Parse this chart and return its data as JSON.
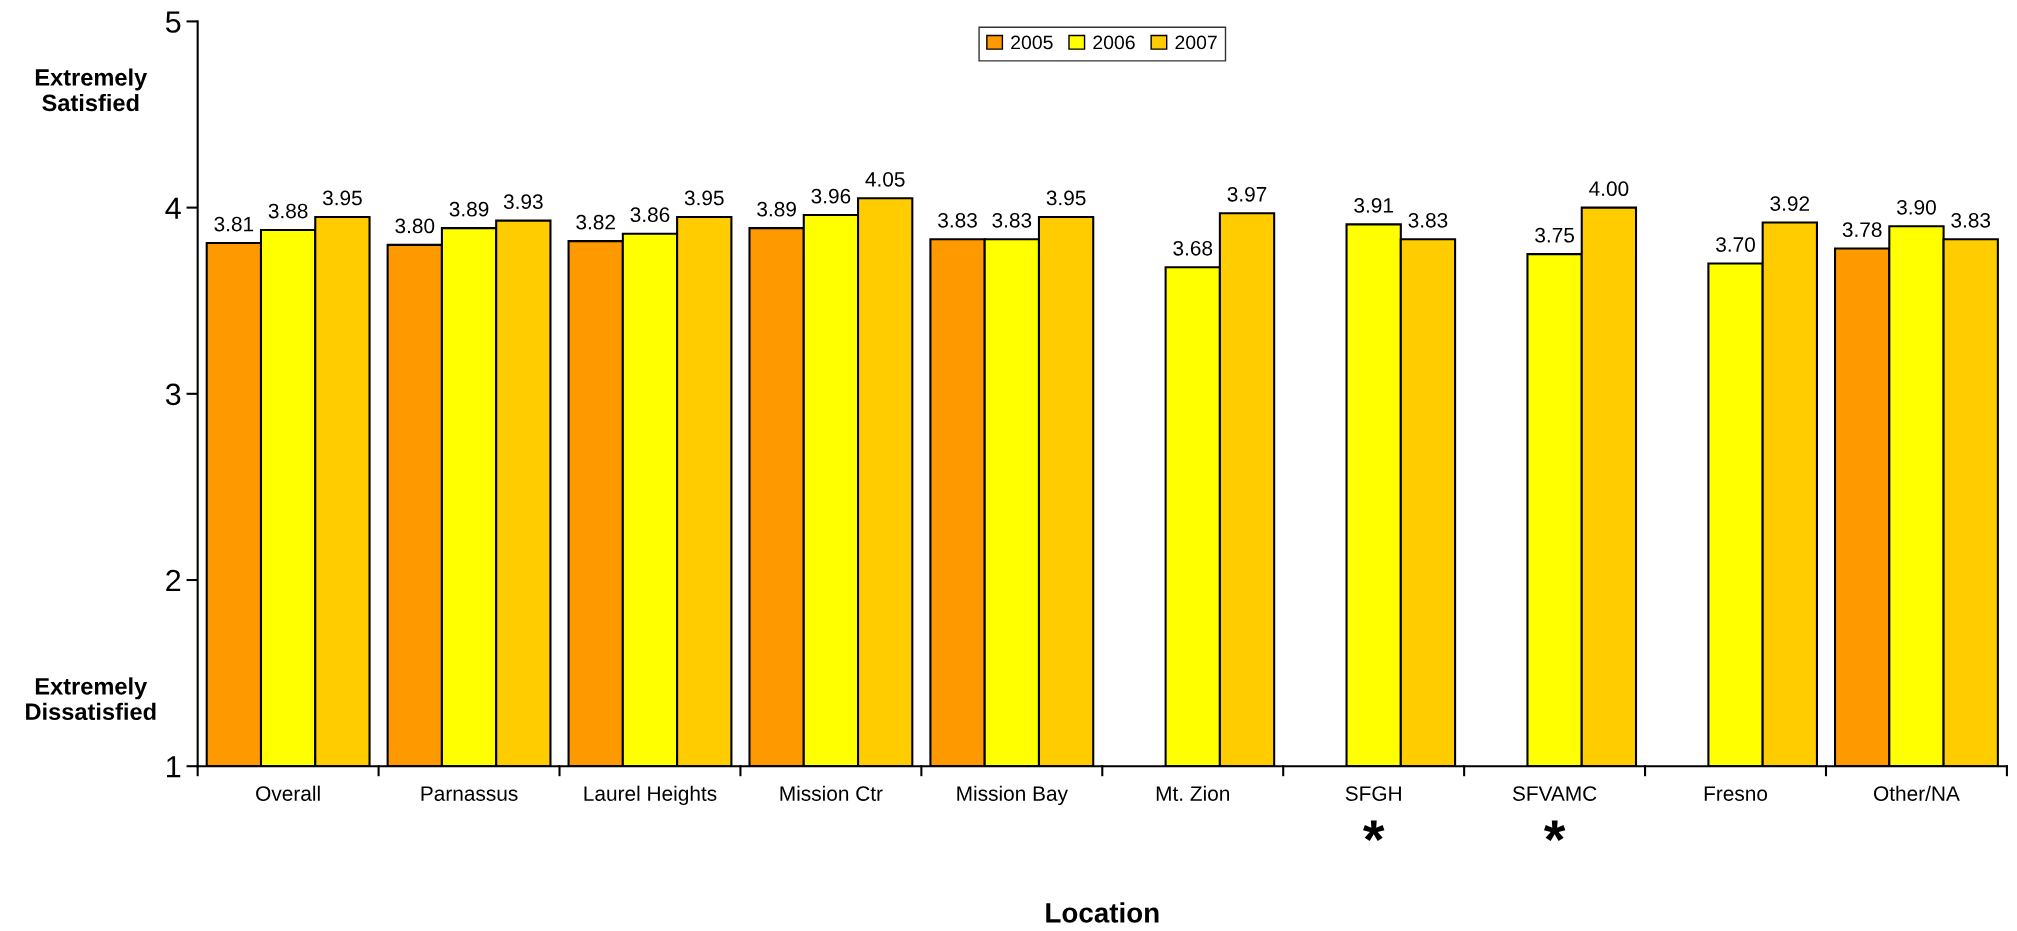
{
  "chart_data": {
    "type": "bar",
    "xlabel": "Location",
    "categories": [
      "Overall",
      "Parnassus",
      "Laurel Heights",
      "Mission Ctr",
      "Mission Bay",
      "Mt. Zion",
      "SFGH",
      "SFVAMC",
      "Fresno",
      "Other/NA"
    ],
    "series": [
      {
        "name": "2005",
        "color": "#ff9900",
        "values": [
          3.81,
          3.8,
          3.82,
          3.89,
          3.83,
          null,
          null,
          null,
          null,
          3.78
        ],
        "value_labels": [
          "3.81",
          "3.80",
          "3.82",
          "3.89",
          "3.83",
          null,
          null,
          null,
          null,
          "3.78"
        ]
      },
      {
        "name": "2006",
        "color": "#ffff00",
        "values": [
          3.88,
          3.89,
          3.86,
          3.96,
          3.83,
          3.68,
          3.91,
          3.75,
          3.7,
          3.9
        ],
        "value_labels": [
          "3.88",
          "3.89",
          "3.86",
          "3.96",
          "3.83",
          "3.68",
          "3.91",
          "3.75",
          "3.70",
          "3.90"
        ]
      },
      {
        "name": "2007",
        "color": "#ffcc00",
        "values": [
          3.95,
          3.93,
          3.95,
          4.05,
          3.95,
          3.97,
          3.83,
          4.0,
          3.92,
          3.83
        ],
        "value_labels": [
          "3.95",
          "3.93",
          "3.95",
          "4.05",
          "3.95",
          "3.97",
          "3.83",
          "4.00",
          "3.92",
          "3.83"
        ]
      }
    ],
    "ylim": [
      1,
      5
    ],
    "yticks": [
      1,
      2,
      3,
      4,
      5
    ],
    "legend": "top",
    "grid": false,
    "annotations": [
      "Extremely Satisfied",
      "Extremely Dissatisfied",
      "*",
      "*"
    ]
  }
}
